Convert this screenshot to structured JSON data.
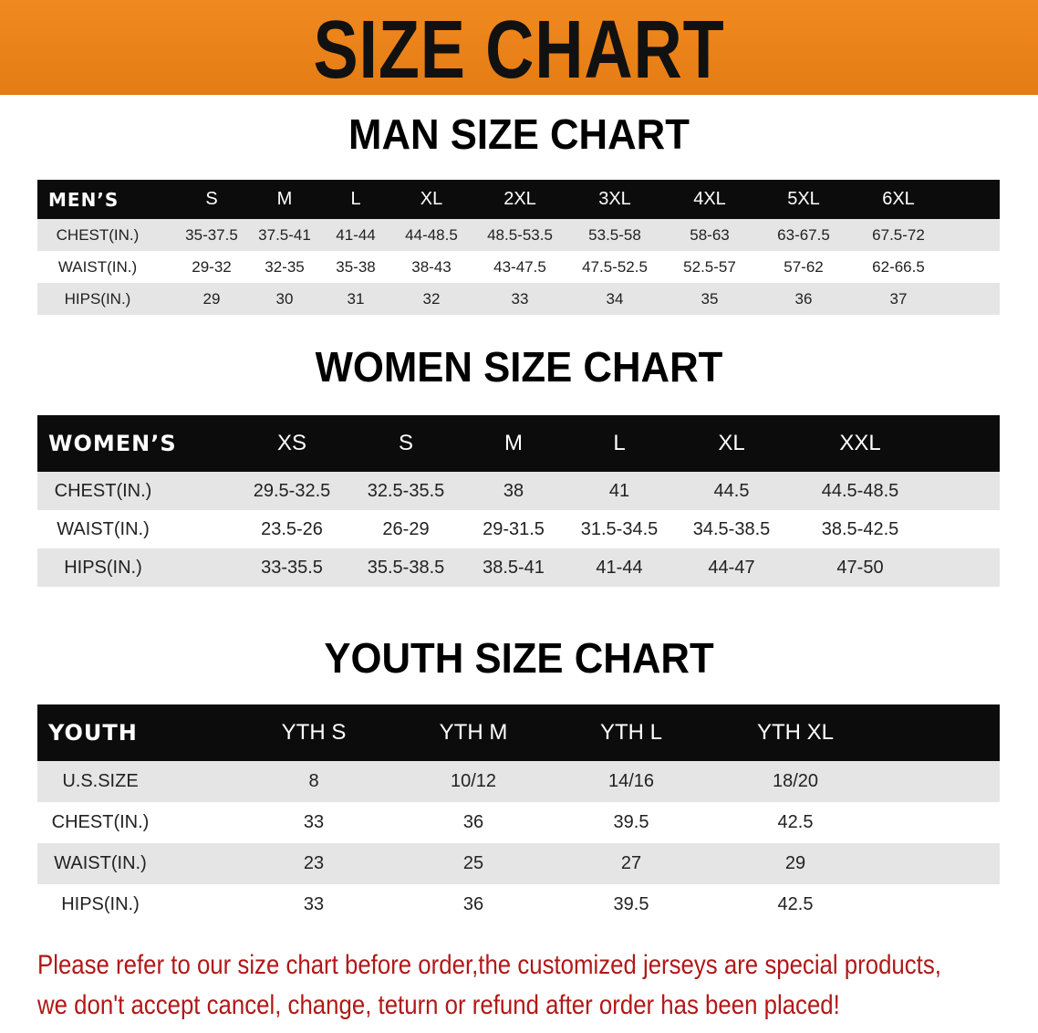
{
  "banner": {
    "title": "SIZE CHART"
  },
  "men": {
    "title": "MAN SIZE CHART",
    "header": [
      "MEN’S",
      "S",
      "M",
      "L",
      "XL",
      "2XL",
      "3XL",
      "4XL",
      "5XL",
      "6XL"
    ],
    "rows": [
      [
        "CHEST(IN.)",
        "35-37.5",
        "37.5-41",
        "41-44",
        "44-48.5",
        "48.5-53.5",
        "53.5-58",
        "58-63",
        "63-67.5",
        "67.5-72"
      ],
      [
        "WAIST(IN.)",
        "29-32",
        "32-35",
        "35-38",
        "38-43",
        "43-47.5",
        "47.5-52.5",
        "52.5-57",
        "57-62",
        "62-66.5"
      ],
      [
        "HIPS(IN.)",
        "29",
        "30",
        "31",
        "32",
        "33",
        "34",
        "35",
        "36",
        "37"
      ]
    ]
  },
  "women": {
    "title": "WOMEN SIZE CHART",
    "header": [
      "WOMEN’S",
      "XS",
      "S",
      "M",
      "L",
      "XL",
      "XXL"
    ],
    "rows": [
      [
        "CHEST(IN.)",
        "29.5-32.5",
        "32.5-35.5",
        "38",
        "41",
        "44.5",
        "44.5-48.5"
      ],
      [
        "WAIST(IN.)",
        "23.5-26",
        "26-29",
        "29-31.5",
        "31.5-34.5",
        "34.5-38.5",
        "38.5-42.5"
      ],
      [
        "HIPS(IN.)",
        "33-35.5",
        "35.5-38.5",
        "38.5-41",
        "41-44",
        "44-47",
        "47-50"
      ]
    ]
  },
  "youth": {
    "title": "YOUTH SIZE CHART",
    "header": [
      "YOUTH",
      "YTH S",
      "YTH M",
      "YTH L",
      "YTH XL"
    ],
    "rows": [
      [
        "U.S.SIZE",
        "8",
        "10/12",
        "14/16",
        "18/20"
      ],
      [
        "CHEST(IN.)",
        "33",
        "36",
        "39.5",
        "42.5"
      ],
      [
        "WAIST(IN.)",
        "23",
        "25",
        "27",
        "29"
      ],
      [
        "HIPS(IN.)",
        "33",
        "36",
        "39.5",
        "42.5"
      ]
    ]
  },
  "note": {
    "line1": "Please refer to our size chart before order,the customized jerseys are special products,",
    "line2": "we don't accept cancel, change, teturn or refund after order has been placed!"
  },
  "colors": {
    "banner": "#e8801a",
    "header_bg": "#0c0c0c",
    "row_gray": "#e5e5e5",
    "note": "#b01818"
  }
}
